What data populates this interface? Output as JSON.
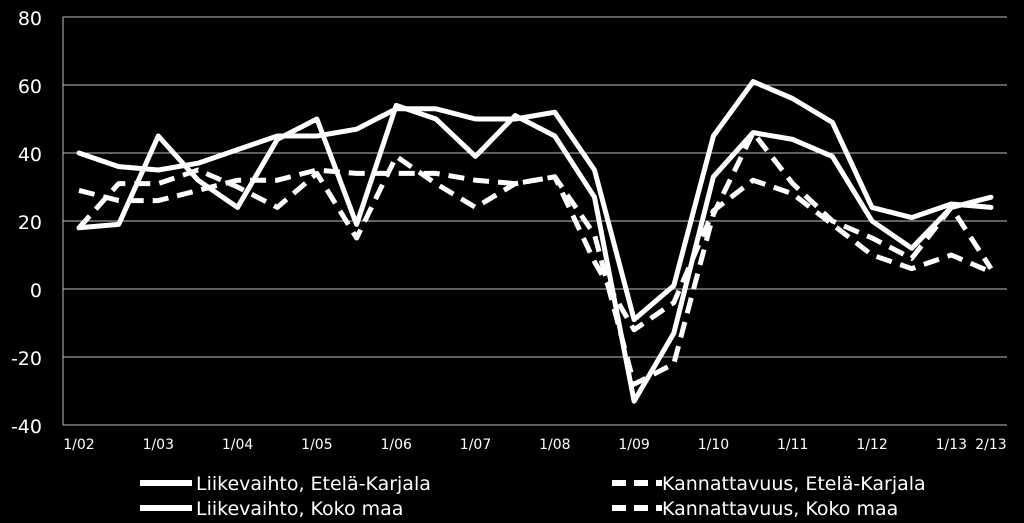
{
  "chart_data": {
    "type": "line",
    "ylim": [
      -40,
      80
    ],
    "yticks": [
      80,
      60,
      40,
      20,
      0,
      -20,
      -40
    ],
    "x_tick_labels": [
      "1/02",
      "1/03",
      "1/04",
      "1/05",
      "1/06",
      "1/07",
      "1/08",
      "1/09",
      "1/10",
      "1/11",
      "1/12",
      "1/13",
      "2/13"
    ],
    "x_tick_positions": [
      0,
      4,
      8,
      12,
      16,
      20,
      24,
      28,
      32,
      36,
      40,
      44,
      46
    ],
    "x_index_range": [
      0,
      46
    ],
    "grid": "horizontal",
    "legend_position": "bottom",
    "background": "#000000",
    "line_color": "#ffffff",
    "series": [
      {
        "name": "Liikevaihto, Etelä-Karjala",
        "style": "solid",
        "x": [
          0,
          2,
          4,
          6,
          8,
          10,
          12,
          14,
          16,
          18,
          20,
          22,
          24,
          26,
          28,
          30,
          32,
          34,
          36,
          38,
          40,
          42,
          44,
          46
        ],
        "values": [
          18,
          19,
          45,
          32,
          24,
          44,
          50,
          19,
          54,
          50,
          39,
          51,
          45,
          27,
          -33,
          -13,
          33,
          46,
          44,
          39,
          20,
          12,
          24,
          27
        ]
      },
      {
        "name": "Liikevaihto, Koko maa",
        "style": "solid",
        "x": [
          0,
          2,
          4,
          6,
          8,
          10,
          12,
          14,
          16,
          18,
          20,
          22,
          24,
          26,
          28,
          30,
          32,
          34,
          36,
          38,
          40,
          42,
          44,
          46
        ],
        "values": [
          40,
          36,
          35,
          37,
          41,
          45,
          45,
          47,
          53,
          53,
          50,
          50,
          52,
          35,
          -9,
          1,
          45,
          61,
          56,
          49,
          24,
          21,
          25,
          24
        ]
      },
      {
        "name": "Kannattavuus, Etelä-Karjala",
        "style": "dashed",
        "x": [
          0,
          2,
          4,
          6,
          8,
          10,
          12,
          14,
          16,
          18,
          20,
          22,
          24,
          26,
          28,
          30,
          32,
          34,
          36,
          38,
          40,
          42,
          44,
          46
        ],
        "values": [
          18,
          31,
          31,
          35,
          30,
          24,
          34,
          15,
          39,
          31,
          24,
          31,
          33,
          16,
          -28,
          -22,
          22,
          46,
          31,
          20,
          15,
          9,
          24,
          6
        ]
      },
      {
        "name": "Kannattavuus, Koko maa",
        "style": "dashed",
        "x": [
          0,
          2,
          4,
          6,
          8,
          10,
          12,
          14,
          16,
          18,
          20,
          22,
          24,
          26,
          28,
          30,
          32,
          34,
          36,
          38,
          40,
          42,
          44,
          46
        ],
        "values": [
          29,
          26,
          26,
          29,
          32,
          32,
          35,
          34,
          34,
          34,
          32,
          31,
          33,
          8,
          -12,
          -4,
          23,
          32,
          28,
          19,
          10,
          6,
          10,
          5
        ]
      }
    ]
  }
}
